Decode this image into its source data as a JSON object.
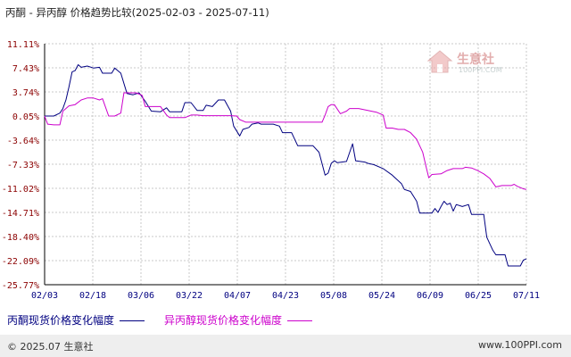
{
  "title": "丙酮 - 异丙醇 价格趋势比较(2025-02-03 - 2025-07-11)",
  "watermark": {
    "text": "生意社",
    "sub": "100PPI.COM"
  },
  "footer": {
    "left": "© 2025.07 生意社",
    "right": "www.100PPI.com"
  },
  "colors": {
    "acetone": "#000080",
    "isopropanol": "#cc00cc",
    "grid": "#c8c8c8",
    "axis": "#000000",
    "tick_label": "#8b0000",
    "x_label": "#000080"
  },
  "chart_data": {
    "type": "line",
    "title": "丙酮 - 异丙醇 价格趋势比较(2025-02-03 - 2025-07-11)",
    "x_range": [
      "2025-02-03",
      "2025-07-11"
    ],
    "x_ticks": [
      "02/03",
      "02/18",
      "03/06",
      "03/22",
      "04/07",
      "04/23",
      "05/08",
      "05/24",
      "06/09",
      "06/25",
      "07/11"
    ],
    "y_ticks": [
      "11.11%",
      "7.43%",
      "3.74%",
      "0.05%",
      "-3.64%",
      "-7.33%",
      "-11.02%",
      "-14.71%",
      "-18.40%",
      "-22.09%",
      "-25.77%"
    ],
    "ylim": [
      -25.77,
      11.11
    ],
    "grid": true,
    "legend_position": "bottom",
    "series": [
      {
        "name": "丙酮现货价格变化幅度",
        "color": "#000080",
        "points": [
          [
            "2025-02-03",
            0.05
          ],
          [
            "2025-02-06",
            0.05
          ],
          [
            "2025-02-08",
            0.5
          ],
          [
            "2025-02-09",
            1.2
          ],
          [
            "2025-02-10",
            2.5
          ],
          [
            "2025-02-11",
            4.5
          ],
          [
            "2025-02-12",
            6.8
          ],
          [
            "2025-02-13",
            7.0
          ],
          [
            "2025-02-14",
            7.9
          ],
          [
            "2025-02-15",
            7.5
          ],
          [
            "2025-02-17",
            7.7
          ],
          [
            "2025-02-19",
            7.4
          ],
          [
            "2025-02-21",
            7.5
          ],
          [
            "2025-02-22",
            6.6
          ],
          [
            "2025-02-25",
            6.6
          ],
          [
            "2025-02-26",
            7.4
          ],
          [
            "2025-02-28",
            6.6
          ],
          [
            "2025-03-02",
            3.5
          ],
          [
            "2025-03-04",
            3.3
          ],
          [
            "2025-03-06",
            3.6
          ],
          [
            "2025-03-08",
            2.3
          ],
          [
            "2025-03-10",
            0.8
          ],
          [
            "2025-03-13",
            0.7
          ],
          [
            "2025-03-15",
            1.3
          ],
          [
            "2025-03-16",
            0.7
          ],
          [
            "2025-03-20",
            0.7
          ],
          [
            "2025-03-21",
            2.1
          ],
          [
            "2025-03-23",
            2.1
          ],
          [
            "2025-03-25",
            0.9
          ],
          [
            "2025-03-27",
            0.9
          ],
          [
            "2025-03-28",
            1.7
          ],
          [
            "2025-03-30",
            1.5
          ],
          [
            "2025-04-01",
            2.5
          ],
          [
            "2025-04-03",
            2.5
          ],
          [
            "2025-04-05",
            0.8
          ],
          [
            "2025-04-06",
            -1.5
          ],
          [
            "2025-04-08",
            -3.0
          ],
          [
            "2025-04-09",
            -2.0
          ],
          [
            "2025-04-11",
            -1.7
          ],
          [
            "2025-04-12",
            -1.2
          ],
          [
            "2025-04-14",
            -1.0
          ],
          [
            "2025-04-15",
            -1.2
          ],
          [
            "2025-04-19",
            -1.2
          ],
          [
            "2025-04-21",
            -1.5
          ],
          [
            "2025-04-22",
            -2.5
          ],
          [
            "2025-04-25",
            -2.5
          ],
          [
            "2025-04-27",
            -4.5
          ],
          [
            "2025-05-02",
            -4.5
          ],
          [
            "2025-05-04",
            -5.5
          ],
          [
            "2025-05-06",
            -9.0
          ],
          [
            "2025-05-07",
            -8.7
          ],
          [
            "2025-05-08",
            -7.2
          ],
          [
            "2025-05-09",
            -6.8
          ],
          [
            "2025-05-10",
            -7.1
          ],
          [
            "2025-05-13",
            -6.9
          ],
          [
            "2025-05-15",
            -4.2
          ],
          [
            "2025-05-16",
            -6.8
          ],
          [
            "2025-05-19",
            -7.0
          ],
          [
            "2025-05-20",
            -7.2
          ],
          [
            "2025-05-22",
            -7.4
          ],
          [
            "2025-05-25",
            -8.0
          ],
          [
            "2025-05-28",
            -9.0
          ],
          [
            "2025-05-31",
            -10.3
          ],
          [
            "2025-06-01",
            -11.2
          ],
          [
            "2025-06-03",
            -11.5
          ],
          [
            "2025-06-05",
            -13.0
          ],
          [
            "2025-06-06",
            -14.8
          ],
          [
            "2025-06-10",
            -14.8
          ],
          [
            "2025-06-11",
            -14.1
          ],
          [
            "2025-06-12",
            -14.7
          ],
          [
            "2025-06-13",
            -13.8
          ],
          [
            "2025-06-14",
            -13.0
          ],
          [
            "2025-06-15",
            -13.5
          ],
          [
            "2025-06-16",
            -13.3
          ],
          [
            "2025-06-17",
            -14.5
          ],
          [
            "2025-06-18",
            -13.5
          ],
          [
            "2025-06-20",
            -13.8
          ],
          [
            "2025-06-22",
            -13.5
          ],
          [
            "2025-06-23",
            -15.0
          ],
          [
            "2025-06-27",
            -15.0
          ],
          [
            "2025-06-28",
            -18.5
          ],
          [
            "2025-06-30",
            -20.5
          ],
          [
            "2025-07-01",
            -21.2
          ],
          [
            "2025-07-04",
            -21.2
          ],
          [
            "2025-07-05",
            -22.9
          ],
          [
            "2025-07-09",
            -22.9
          ],
          [
            "2025-07-10",
            -22.0
          ],
          [
            "2025-07-11",
            -21.8
          ]
        ]
      },
      {
        "name": "异丙醇现货价格变化幅度",
        "color": "#cc00cc",
        "points": [
          [
            "2025-02-03",
            0.05
          ],
          [
            "2025-02-04",
            -1.2
          ],
          [
            "2025-02-06",
            -1.3
          ],
          [
            "2025-02-08",
            -1.3
          ],
          [
            "2025-02-09",
            0.8
          ],
          [
            "2025-02-11",
            1.6
          ],
          [
            "2025-02-13",
            1.8
          ],
          [
            "2025-02-15",
            2.5
          ],
          [
            "2025-02-17",
            2.8
          ],
          [
            "2025-02-19",
            2.8
          ],
          [
            "2025-02-21",
            2.5
          ],
          [
            "2025-02-22",
            2.7
          ],
          [
            "2025-02-24",
            0.05
          ],
          [
            "2025-02-26",
            0.05
          ],
          [
            "2025-02-28",
            0.5
          ],
          [
            "2025-03-01",
            3.6
          ],
          [
            "2025-03-05",
            3.6
          ],
          [
            "2025-03-07",
            3.2
          ],
          [
            "2025-03-08",
            1.5
          ],
          [
            "2025-03-13",
            1.5
          ],
          [
            "2025-03-15",
            0.2
          ],
          [
            "2025-03-16",
            -0.2
          ],
          [
            "2025-03-21",
            -0.2
          ],
          [
            "2025-03-23",
            0.2
          ],
          [
            "2025-03-25",
            0.2
          ],
          [
            "2025-03-27",
            0.1
          ],
          [
            "2025-04-05",
            0.1
          ],
          [
            "2025-04-07",
            0.05
          ],
          [
            "2025-04-08",
            -0.5
          ],
          [
            "2025-04-10",
            -0.9
          ],
          [
            "2025-04-25",
            -0.9
          ],
          [
            "2025-05-01",
            -0.9
          ],
          [
            "2025-05-03",
            -0.9
          ],
          [
            "2025-05-05",
            -0.9
          ],
          [
            "2025-05-06",
            0.2
          ],
          [
            "2025-05-07",
            1.5
          ],
          [
            "2025-05-08",
            1.8
          ],
          [
            "2025-05-09",
            1.8
          ],
          [
            "2025-05-11",
            0.4
          ],
          [
            "2025-05-13",
            0.8
          ],
          [
            "2025-05-14",
            1.2
          ],
          [
            "2025-05-17",
            1.2
          ],
          [
            "2025-05-20",
            0.9
          ],
          [
            "2025-05-23",
            0.6
          ],
          [
            "2025-05-25",
            0.2
          ],
          [
            "2025-05-26",
            -1.8
          ],
          [
            "2025-05-28",
            -1.8
          ],
          [
            "2025-05-30",
            -2.0
          ],
          [
            "2025-06-01",
            -2.0
          ],
          [
            "2025-06-03",
            -2.5
          ],
          [
            "2025-06-05",
            -3.5
          ],
          [
            "2025-06-06",
            -4.5
          ],
          [
            "2025-06-07",
            -5.5
          ],
          [
            "2025-06-08",
            -7.5
          ],
          [
            "2025-06-09",
            -9.4
          ],
          [
            "2025-06-10",
            -8.9
          ],
          [
            "2025-06-13",
            -8.8
          ],
          [
            "2025-06-15",
            -8.3
          ],
          [
            "2025-06-17",
            -8.0
          ],
          [
            "2025-06-20",
            -8.0
          ],
          [
            "2025-06-21",
            -7.8
          ],
          [
            "2025-06-23",
            -7.9
          ],
          [
            "2025-06-25",
            -8.3
          ],
          [
            "2025-06-27",
            -8.8
          ],
          [
            "2025-06-29",
            -9.5
          ],
          [
            "2025-07-01",
            -10.8
          ],
          [
            "2025-07-03",
            -10.6
          ],
          [
            "2025-07-06",
            -10.6
          ],
          [
            "2025-07-07",
            -10.4
          ],
          [
            "2025-07-08",
            -10.7
          ],
          [
            "2025-07-10",
            -11.1
          ],
          [
            "2025-07-11",
            -11.2
          ]
        ]
      }
    ]
  }
}
